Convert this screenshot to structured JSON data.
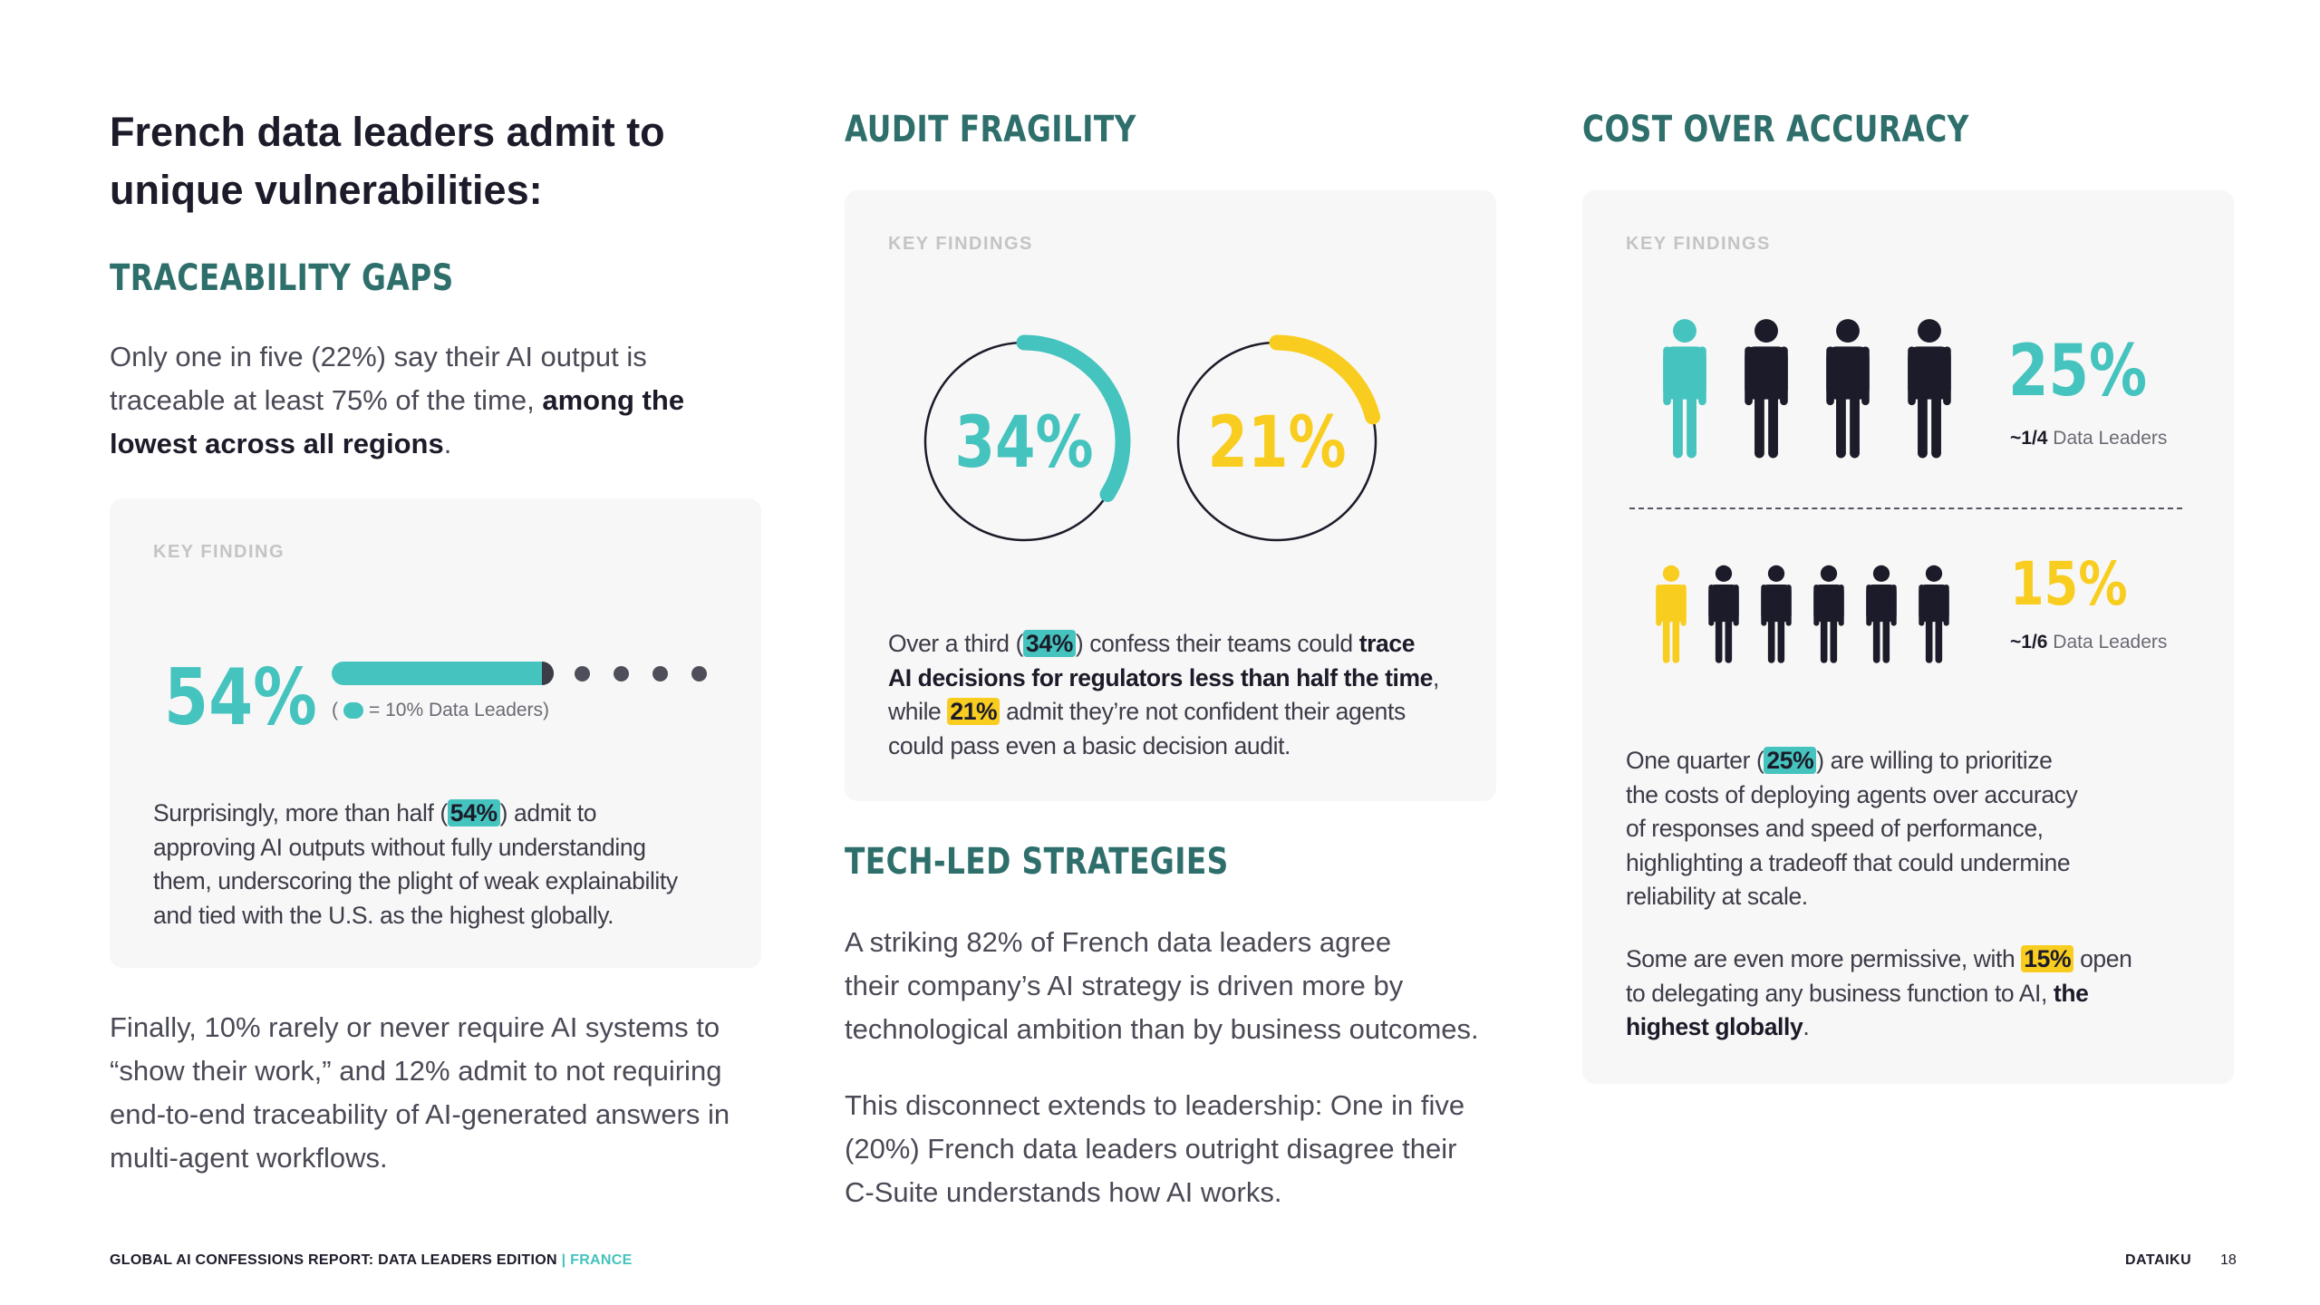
{
  "intro": {
    "line1": "French data leaders admit to",
    "line2": "unique vulnerabilities:"
  },
  "traceability": {
    "heading": "TRACEABILITY GAPS",
    "para1": {
      "line1": "Only one in five (22%) say their AI output is",
      "line2_pre": "traceable at least 75% of the time, ",
      "line2_bold": "among the",
      "line3_bold": "lowest across all regions",
      "line3_post": "."
    },
    "card": {
      "label": "KEY FINDING",
      "stat": "54%",
      "progress_percent": 54,
      "legend_open": "(",
      "legend_text": "= 10% Data Leaders)",
      "text": {
        "l1_pre": "Surprisingly, more than half (",
        "l1_hl": "54%",
        "l1_post": ") admit to",
        "l2": "approving AI outputs without fully understanding",
        "l3": "them, underscoring the plight of weak explainability",
        "l4": "and tied with the U.S. as the highest globally."
      }
    },
    "para2": {
      "line1": "Finally, 10% rarely or never require AI systems to",
      "line2": "“show their work,” and 12% admit to not requiring",
      "line3": "end-to-end traceability of AI-generated answers in",
      "line4": "multi-agent workflows."
    }
  },
  "audit": {
    "heading": "AUDIT FRAGILITY",
    "label": "KEY FINDINGS",
    "donuts": [
      {
        "value": 34,
        "label": "34%",
        "color": "#45c3be"
      },
      {
        "value": 21,
        "label": "21%",
        "color": "#f9cd1f"
      }
    ],
    "text": {
      "l1_pre": "Over a third (",
      "l1_hl": "34%",
      "l1_post": ") confess their teams could ",
      "l1_bold": "trace",
      "l2_bold": "AI decisions for regulators less than half the time",
      "l2_post": ",",
      "l3_pre": "while ",
      "l3_hl": "21%",
      "l3_post": " admit they’re not confident their agents",
      "l4": "could pass even a basic decision audit."
    }
  },
  "tech": {
    "heading": "TECH-LED STRATEGIES",
    "p1": {
      "l1": "A striking 82% of French data leaders agree",
      "l2": "their company’s AI strategy is driven more by",
      "l3": "technological ambition than by business outcomes."
    },
    "p2": {
      "l1": "This disconnect extends to leadership: One in five",
      "l2": "(20%) French data leaders outright disagree their",
      "l3": "C-Suite understands how AI works."
    }
  },
  "cost": {
    "heading": "COST OVER ACCURACY",
    "label": "KEY FINDINGS",
    "row1": {
      "stat": "25%",
      "cap_bold": "~1/4",
      "cap": " Data Leaders",
      "highlight": "#45c3be",
      "total": 4
    },
    "row2": {
      "stat": "15%",
      "cap_bold": "~1/6",
      "cap": " Data Leaders",
      "highlight": "#f9cd1f",
      "total": 6
    },
    "p1": {
      "l1_pre": "One quarter (",
      "l1_hl": "25%",
      "l1_post": ") are willing to prioritize",
      "l2": "the costs of deploying agents over accuracy",
      "l3": "of responses and speed of performance,",
      "l4": "highlighting a tradeoff that could undermine",
      "l5": "reliability at scale."
    },
    "p2": {
      "l1_pre": "Some are even more permissive, with ",
      "l1_hl": "15%",
      "l1_post": " open",
      "l2_pre": "to delegating any business function to AI, ",
      "l2_bold": "the",
      "l3_bold": "highest globally",
      "l3_post": "."
    }
  },
  "footer": {
    "report": "GLOBAL AI CONFESSIONS REPORT: DATA LEADERS EDITION",
    "sep": " | ",
    "country": "FRANCE",
    "brand": "DATAIKU",
    "page": "18"
  },
  "colors": {
    "teal": "#45c3be",
    "yellow": "#f9cd1f",
    "dark": "#1c1b29",
    "heading": "#2e6f6c"
  }
}
